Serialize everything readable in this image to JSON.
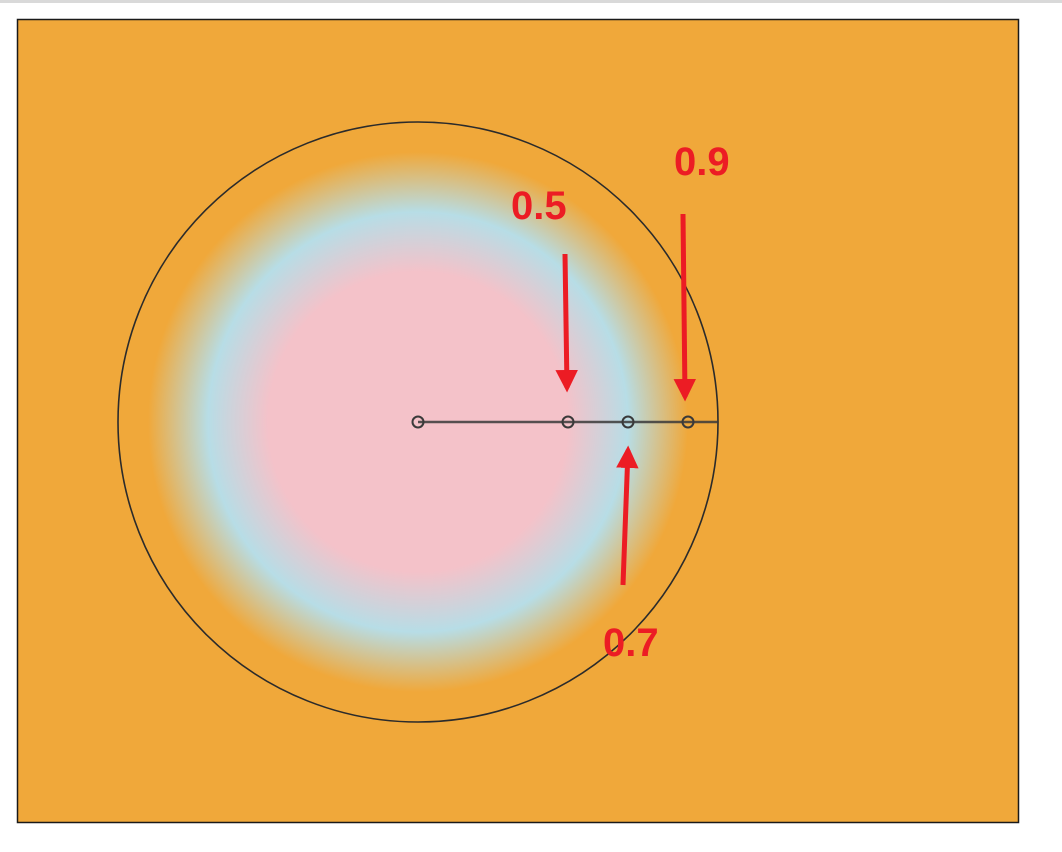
{
  "colors": {
    "background": "#f0a83a",
    "inner": "#f4c2c9",
    "middle": "#b7dde6",
    "outline": "#2b2b2b",
    "annotation": "#ec1c24"
  },
  "gradient": {
    "type": "radial",
    "stops": [
      {
        "offset": 0,
        "color": "#f4c2c9"
      },
      {
        "offset": 0.5,
        "color": "#f4c2c9"
      },
      {
        "offset": 0.7,
        "color": "#b7dde6"
      },
      {
        "offset": 0.9,
        "color": "#f0a83a"
      }
    ]
  },
  "labels": {
    "stop_a": "0.5",
    "stop_b": "0.9",
    "stop_c": "0.7"
  }
}
